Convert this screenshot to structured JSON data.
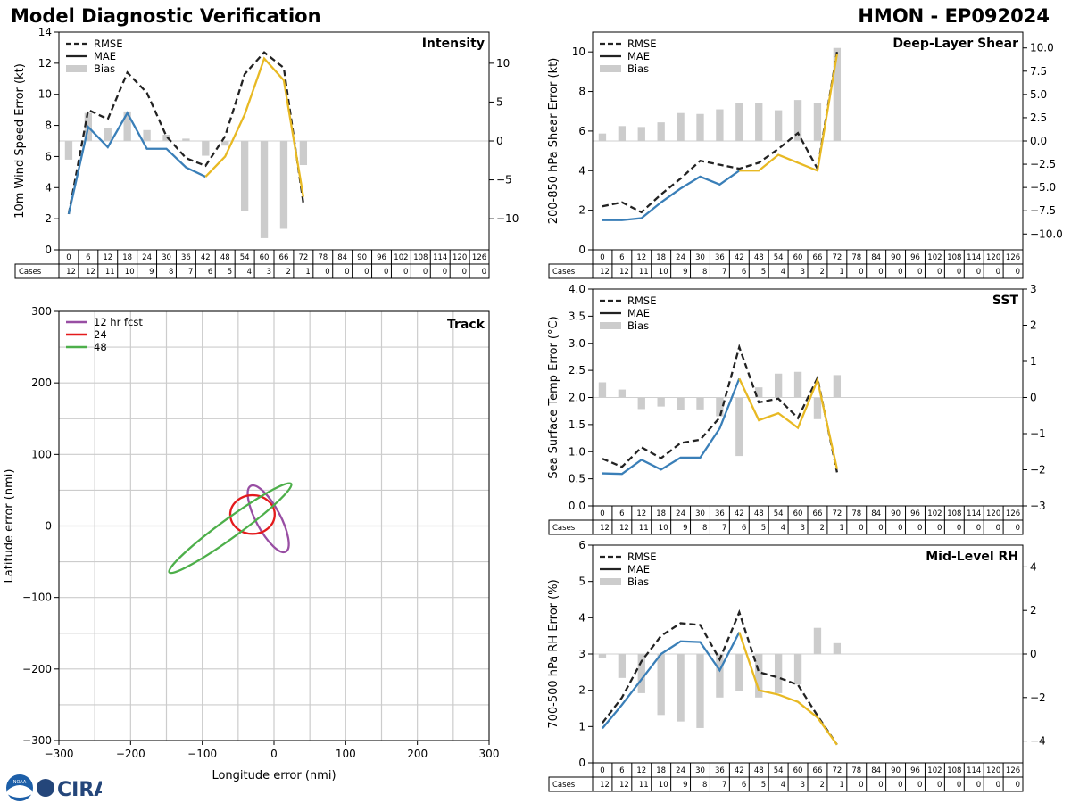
{
  "header": {
    "title": "Model Diagnostic Verification",
    "model_storm": "HMON - EP092024"
  },
  "logos": {
    "noaa_text": "NOAA",
    "cira_text": "CIRA"
  },
  "colors": {
    "rmse": "#222222",
    "mae_early": "#3a7fb8",
    "mae_late": "#e8b923",
    "bias": "#cccccc",
    "track_12": "#984ea3",
    "track_24": "#e41a1c",
    "track_48": "#4daf4a",
    "grid": "#cccccc"
  },
  "legend_labels": {
    "rmse": "RMSE",
    "mae": "MAE",
    "bias": "Bias"
  },
  "cases_label": "Cases",
  "lead_times": [
    0,
    6,
    12,
    18,
    24,
    30,
    36,
    42,
    48,
    54,
    60,
    66,
    72,
    78,
    84,
    90,
    96,
    102,
    108,
    114,
    120,
    126
  ],
  "cases": [
    12,
    12,
    11,
    10,
    9,
    8,
    7,
    6,
    5,
    4,
    3,
    2,
    1,
    0,
    0,
    0,
    0,
    0,
    0,
    0,
    0,
    0
  ],
  "chart_data": [
    {
      "type": "line",
      "id": "intensity",
      "title": "Intensity",
      "ylabel": "10m Wind Speed Error (kt)",
      "ylim": [
        0,
        14
      ],
      "yticks": [
        0,
        2,
        4,
        6,
        8,
        10,
        12,
        14
      ],
      "y2lim": [
        -14,
        14
      ],
      "y2ticks": [
        -10,
        -5,
        0,
        5,
        10
      ],
      "mae_switch_index": 7,
      "rmse": [
        2.3,
        9.0,
        8.4,
        11.4,
        10.1,
        7.3,
        5.9,
        5.4,
        7.3,
        11.3,
        12.7,
        11.7,
        3.0
      ],
      "mae": [
        2.3,
        7.9,
        6.6,
        8.8,
        6.5,
        6.5,
        5.3,
        4.7,
        6.0,
        8.7,
        12.3,
        10.9,
        3.4
      ],
      "bias": [
        -2.4,
        3.6,
        1.7,
        3.8,
        1.4,
        0.8,
        0.3,
        -1.9,
        -0.6,
        -9.0,
        -12.5,
        -11.3,
        -3.1
      ]
    },
    {
      "type": "line",
      "id": "shear",
      "title": "Deep-Layer Shear",
      "ylabel": "200-850 hPa Shear Error (kt)",
      "ylim": [
        0,
        11
      ],
      "yticks": [
        0,
        2,
        4,
        6,
        8,
        10
      ],
      "y2lim": [
        -11.7,
        11.7
      ],
      "y2ticks": [
        -10.0,
        -7.5,
        -5.0,
        -2.5,
        0.0,
        2.5,
        5.0,
        7.5,
        10.0
      ],
      "y2tick_labels": [
        "−10.0",
        "−7.5",
        "−5.0",
        "−2.5",
        "0.0",
        "2.5",
        "5.0",
        "7.5",
        "10.0"
      ],
      "mae_switch_index": 7,
      "rmse": [
        2.2,
        2.4,
        1.9,
        2.8,
        3.6,
        4.5,
        4.3,
        4.1,
        4.4,
        5.1,
        5.9,
        4.1,
        10.0
      ],
      "mae": [
        1.5,
        1.5,
        1.6,
        2.4,
        3.1,
        3.7,
        3.3,
        4.0,
        4.0,
        4.8,
        4.4,
        4.0,
        9.9
      ],
      "bias": [
        0.8,
        1.6,
        1.5,
        2.0,
        3.0,
        2.9,
        3.4,
        4.1,
        4.1,
        3.3,
        4.4,
        4.1,
        10.0
      ]
    },
    {
      "type": "line",
      "id": "sst",
      "title": "SST",
      "ylabel": "Sea Surface Temp Error (°C)",
      "ylim": [
        0,
        4
      ],
      "yticks": [
        0.0,
        0.5,
        1.0,
        1.5,
        2.0,
        2.5,
        3.0,
        3.5,
        4.0
      ],
      "ytick_labels": [
        "0.0",
        "0.5",
        "1.0",
        "1.5",
        "2.0",
        "2.5",
        "3.0",
        "3.5",
        "4.0"
      ],
      "y2lim": [
        -3,
        3
      ],
      "y2ticks": [
        -3,
        -2,
        -1,
        0,
        1,
        2,
        3
      ],
      "mae_switch_index": 7,
      "rmse": [
        0.87,
        0.72,
        1.08,
        0.88,
        1.16,
        1.22,
        1.63,
        2.93,
        1.91,
        1.98,
        1.62,
        2.36,
        0.62
      ],
      "mae": [
        0.6,
        0.59,
        0.85,
        0.67,
        0.89,
        0.89,
        1.43,
        2.35,
        1.58,
        1.71,
        1.44,
        2.32,
        0.68
      ],
      "bias": [
        0.42,
        0.22,
        -0.32,
        -0.25,
        -0.35,
        -0.33,
        -0.52,
        -1.62,
        0.28,
        0.66,
        0.71,
        -0.6,
        0.62
      ]
    },
    {
      "type": "line",
      "id": "rh",
      "title": "Mid-Level RH",
      "ylabel": "700-500 hPa RH Error (%)",
      "ylim": [
        0,
        6
      ],
      "yticks": [
        0,
        1,
        2,
        3,
        4,
        5,
        6
      ],
      "y2lim": [
        -5,
        5
      ],
      "y2ticks": [
        -4,
        -2,
        0,
        2,
        4
      ],
      "mae_switch_index": 7,
      "rmse": [
        1.1,
        1.8,
        2.8,
        3.5,
        3.85,
        3.8,
        2.85,
        4.15,
        2.5,
        2.35,
        2.15,
        1.3,
        0.5
      ],
      "mae": [
        0.95,
        1.6,
        2.3,
        3.0,
        3.35,
        3.33,
        2.55,
        3.6,
        2.0,
        1.88,
        1.68,
        1.25,
        0.5
      ],
      "bias": [
        -0.2,
        -1.1,
        -1.8,
        -2.8,
        -3.1,
        -3.4,
        -2.0,
        -1.7,
        -2.0,
        -1.8,
        -1.4,
        1.2,
        0.5
      ]
    },
    {
      "type": "ellipse",
      "id": "track",
      "title": "Track",
      "xlabel": "Longitude error (nmi)",
      "ylabel": "Latitude error (nmi)",
      "xlim": [
        -300,
        300
      ],
      "ylim": [
        -300,
        300
      ],
      "ticks": [
        -300,
        -200,
        -100,
        0,
        100,
        200,
        300
      ],
      "tick_labels": [
        "−300",
        "−200",
        "−100",
        "0",
        "100",
        "200",
        "300"
      ],
      "minor_grid": [
        -250,
        -150,
        -50,
        50,
        150,
        250
      ],
      "series": [
        {
          "name": "12 hr fcst",
          "cx": -8,
          "cy": 10,
          "rx": 52,
          "ry": 17,
          "angle_deg": -62
        },
        {
          "name": "24",
          "cx": -30,
          "cy": 16,
          "rx": 31,
          "ry": 27,
          "angle_deg": 0
        },
        {
          "name": "48",
          "cx": -61,
          "cy": -3,
          "rx": 105,
          "ry": 13,
          "angle_deg": 36
        }
      ]
    }
  ]
}
